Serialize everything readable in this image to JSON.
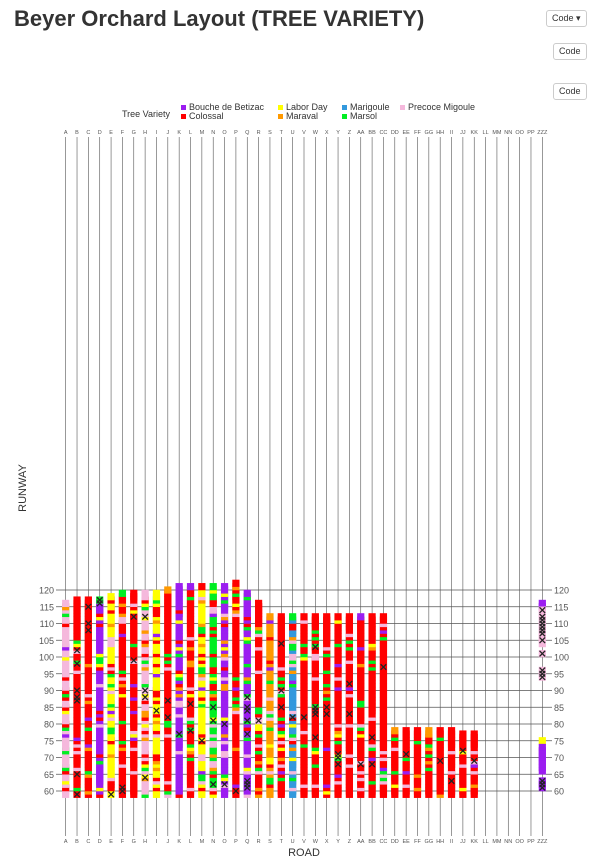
{
  "page": {
    "title": "Beyer Orchard Layout (TREE VARIETY)"
  },
  "buttons": {
    "code_dropdown": "Code ▾",
    "code_1": "Code",
    "code_2": "Code"
  },
  "chart_data": {
    "type": "heatmap",
    "title": "",
    "xlabel": "ROAD",
    "ylabel": "RUNWAY",
    "legend_title": "Tree Variety",
    "legend_position": "top",
    "grid": true,
    "x_categories": [
      "A",
      "B",
      "C",
      "D",
      "E",
      "F",
      "G",
      "H",
      "I",
      "J",
      "K",
      "L",
      "M",
      "N",
      "O",
      "P",
      "Q",
      "R",
      "S",
      "T",
      "U",
      "V",
      "W",
      "X",
      "Y",
      "Z",
      "AA",
      "BB",
      "CC",
      "DD",
      "EE",
      "FF",
      "GG",
      "HH",
      "II",
      "JJ",
      "KK",
      "LL",
      "MM",
      "NN",
      "OO",
      "PP",
      "ZZZ"
    ],
    "y_range": [
      57,
      124
    ],
    "y_ticks": [
      60,
      65,
      70,
      75,
      80,
      85,
      90,
      95,
      100,
      105,
      110,
      115,
      120
    ],
    "varieties": [
      {
        "code": "BB",
        "name": "Bouche de Betizac",
        "color": "#9b1df0"
      },
      {
        "code": "CO",
        "name": "Colossal",
        "color": "#ff0000"
      },
      {
        "code": "LD",
        "name": "Labor Day",
        "color": "#ffff00"
      },
      {
        "code": "MV",
        "name": "Maraval",
        "color": "#ff9900"
      },
      {
        "code": "MG",
        "name": "Marigoule",
        "color": "#3399dd"
      },
      {
        "code": "MS",
        "name": "Marsol",
        "color": "#00ee22"
      },
      {
        "code": "PM",
        "name": "Precoce Migoule",
        "color": "#f5b8dc"
      }
    ],
    "column_extents": [
      {
        "col": "A",
        "y": [
          59,
          116
        ]
      },
      {
        "col": "B",
        "y": [
          59,
          117
        ]
      },
      {
        "col": "C",
        "y": [
          59,
          117
        ]
      },
      {
        "col": "D",
        "y": [
          59,
          117
        ]
      },
      {
        "col": "E",
        "y": [
          59,
          118
        ]
      },
      {
        "col": "F",
        "y": [
          59,
          119
        ]
      },
      {
        "col": "G",
        "y": [
          59,
          119
        ]
      },
      {
        "col": "H",
        "y": [
          59,
          119
        ]
      },
      {
        "col": "I",
        "y": [
          59,
          119
        ]
      },
      {
        "col": "J",
        "y": [
          59,
          120
        ]
      },
      {
        "col": "K",
        "y": [
          59,
          121
        ]
      },
      {
        "col": "L",
        "y": [
          59,
          121
        ]
      },
      {
        "col": "M",
        "y": [
          59,
          121
        ]
      },
      {
        "col": "N",
        "y": [
          59,
          121
        ]
      },
      {
        "col": "O",
        "y": [
          59,
          121
        ]
      },
      {
        "col": "P",
        "y": [
          59,
          122
        ]
      },
      {
        "col": "Q",
        "y": [
          59,
          119
        ]
      },
      {
        "col": "R",
        "y": [
          59,
          116
        ]
      },
      {
        "col": "S",
        "y": [
          59,
          112
        ]
      },
      {
        "col": "T",
        "y": [
          59,
          112
        ]
      },
      {
        "col": "U",
        "y": [
          59,
          112
        ]
      },
      {
        "col": "V",
        "y": [
          59,
          112
        ]
      },
      {
        "col": "W",
        "y": [
          59,
          112
        ]
      },
      {
        "col": "X",
        "y": [
          59,
          112
        ]
      },
      {
        "col": "Y",
        "y": [
          59,
          112
        ]
      },
      {
        "col": "Z",
        "y": [
          59,
          112
        ]
      },
      {
        "col": "AA",
        "y": [
          59,
          112
        ]
      },
      {
        "col": "BB",
        "y": [
          59,
          112
        ]
      },
      {
        "col": "CC",
        "y": [
          59,
          112
        ]
      },
      {
        "col": "DD",
        "y": [
          59,
          78
        ]
      },
      {
        "col": "EE",
        "y": [
          59,
          78
        ]
      },
      {
        "col": "FF",
        "y": [
          59,
          78
        ]
      },
      {
        "col": "GG",
        "y": [
          59,
          78
        ]
      },
      {
        "col": "HH",
        "y": [
          59,
          78
        ]
      },
      {
        "col": "II",
        "y": [
          59,
          78
        ]
      },
      {
        "col": "JJ",
        "y": [
          59,
          77
        ]
      },
      {
        "col": "KK",
        "y": [
          59,
          77
        ]
      }
    ],
    "column_dominant": [
      {
        "col": "A",
        "v": "PM"
      },
      {
        "col": "B",
        "v": "CO"
      },
      {
        "col": "C",
        "v": "CO"
      },
      {
        "col": "D",
        "v": "BB"
      },
      {
        "col": "E",
        "v": "LD"
      },
      {
        "col": "F",
        "v": "CO"
      },
      {
        "col": "G",
        "v": "CO"
      },
      {
        "col": "H",
        "v": "PM"
      },
      {
        "col": "I",
        "v": "LD"
      },
      {
        "col": "J",
        "v": "CO"
      },
      {
        "col": "K",
        "v": "BB"
      },
      {
        "col": "L",
        "v": "CO"
      },
      {
        "col": "M",
        "v": "LD"
      },
      {
        "col": "N",
        "v": "MS"
      },
      {
        "col": "O",
        "v": "BB"
      },
      {
        "col": "P",
        "v": "CO"
      },
      {
        "col": "Q",
        "v": "BB"
      },
      {
        "col": "R",
        "v": "CO"
      },
      {
        "col": "S",
        "v": "MV"
      },
      {
        "col": "T",
        "v": "CO"
      },
      {
        "col": "U",
        "v": "MG"
      },
      {
        "col": "V",
        "v": "CO"
      },
      {
        "col": "W",
        "v": "CO"
      },
      {
        "col": "X",
        "v": "CO"
      },
      {
        "col": "Y",
        "v": "CO"
      },
      {
        "col": "Z",
        "v": "CO"
      },
      {
        "col": "AA",
        "v": "CO"
      },
      {
        "col": "BB",
        "v": "CO"
      },
      {
        "col": "CC",
        "v": "CO"
      },
      {
        "col": "DD",
        "v": "CO"
      },
      {
        "col": "EE",
        "v": "CO"
      },
      {
        "col": "FF",
        "v": "CO"
      },
      {
        "col": "GG",
        "v": "CO"
      },
      {
        "col": "HH",
        "v": "CO"
      },
      {
        "col": "II",
        "v": "CO"
      },
      {
        "col": "JJ",
        "v": "CO"
      },
      {
        "col": "KK",
        "v": "CO"
      }
    ],
    "zzz_column": [
      {
        "y": 116,
        "v": "BB"
      },
      {
        "y": 115,
        "v": "BB"
      },
      {
        "y": 114,
        "v": "PM"
      },
      {
        "y": 113,
        "v": "PM"
      },
      {
        "y": 112,
        "v": "PM"
      },
      {
        "y": 111,
        "v": "PM"
      },
      {
        "y": 110,
        "v": "PM"
      },
      {
        "y": 109,
        "v": "PM"
      },
      {
        "y": 108,
        "v": "PM"
      },
      {
        "y": 107,
        "v": "PM"
      },
      {
        "y": 106,
        "v": "PM"
      },
      {
        "y": 105,
        "v": "PM"
      },
      {
        "y": 104,
        "v": "PM"
      },
      {
        "y": 101,
        "v": "PM"
      },
      {
        "y": 96,
        "v": "PM"
      },
      {
        "y": 95,
        "v": "PM"
      },
      {
        "y": 94,
        "v": "PM"
      },
      {
        "y": 75,
        "v": "LD"
      },
      {
        "y": 73,
        "v": "BB"
      },
      {
        "y": 72,
        "v": "BB"
      },
      {
        "y": 71,
        "v": "BB"
      },
      {
        "y": 70,
        "v": "BB"
      },
      {
        "y": 69,
        "v": "BB"
      },
      {
        "y": 68,
        "v": "BB"
      },
      {
        "y": 67,
        "v": "BB"
      },
      {
        "y": 66,
        "v": "BB"
      },
      {
        "y": 63,
        "v": "BB"
      },
      {
        "y": 62,
        "v": "BB"
      },
      {
        "y": 61,
        "v": "BB"
      }
    ],
    "dead_trees": [
      {
        "col": "D",
        "y": 117
      },
      {
        "col": "D",
        "y": 116
      },
      {
        "col": "C",
        "y": 115
      },
      {
        "col": "G",
        "y": 112
      },
      {
        "col": "H",
        "y": 112
      },
      {
        "col": "C",
        "y": 110
      },
      {
        "col": "C",
        "y": 108
      },
      {
        "col": "B",
        "y": 102
      },
      {
        "col": "G",
        "y": 99
      },
      {
        "col": "B",
        "y": 98
      },
      {
        "col": "B",
        "y": 90
      },
      {
        "col": "B",
        "y": 88
      },
      {
        "col": "B",
        "y": 87
      },
      {
        "col": "H",
        "y": 90
      },
      {
        "col": "H",
        "y": 88
      },
      {
        "col": "J",
        "y": 87
      },
      {
        "col": "L",
        "y": 86
      },
      {
        "col": "I",
        "y": 84
      },
      {
        "col": "J",
        "y": 82
      },
      {
        "col": "N",
        "y": 85
      },
      {
        "col": "N",
        "y": 81
      },
      {
        "col": "O",
        "y": 80
      },
      {
        "col": "Q",
        "y": 88
      },
      {
        "col": "Q",
        "y": 85
      },
      {
        "col": "Q",
        "y": 84
      },
      {
        "col": "Q",
        "y": 81
      },
      {
        "col": "R",
        "y": 81
      },
      {
        "col": "T",
        "y": 85
      },
      {
        "col": "T",
        "y": 90
      },
      {
        "col": "U",
        "y": 82
      },
      {
        "col": "V",
        "y": 82
      },
      {
        "col": "W",
        "y": 85
      },
      {
        "col": "W",
        "y": 84
      },
      {
        "col": "W",
        "y": 83
      },
      {
        "col": "X",
        "y": 85
      },
      {
        "col": "X",
        "y": 83
      },
      {
        "col": "Z",
        "y": 92
      },
      {
        "col": "Z",
        "y": 83
      },
      {
        "col": "CC",
        "y": 97
      },
      {
        "col": "T",
        "y": 104
      },
      {
        "col": "W",
        "y": 103
      },
      {
        "col": "K",
        "y": 77
      },
      {
        "col": "L",
        "y": 78
      },
      {
        "col": "M",
        "y": 75
      },
      {
        "col": "Q",
        "y": 77
      },
      {
        "col": "W",
        "y": 76
      },
      {
        "col": "BB",
        "y": 76
      },
      {
        "col": "Y",
        "y": 71
      },
      {
        "col": "Y",
        "y": 70
      },
      {
        "col": "Y",
        "y": 68
      },
      {
        "col": "AA",
        "y": 68
      },
      {
        "col": "BB",
        "y": 68
      },
      {
        "col": "EE",
        "y": 71
      },
      {
        "col": "HH",
        "y": 69
      },
      {
        "col": "KK",
        "y": 69
      },
      {
        "col": "JJ",
        "y": 72
      },
      {
        "col": "B",
        "y": 65
      },
      {
        "col": "H",
        "y": 64
      },
      {
        "col": "II",
        "y": 63
      },
      {
        "col": "N",
        "y": 62
      },
      {
        "col": "O",
        "y": 62
      },
      {
        "col": "Q",
        "y": 63
      },
      {
        "col": "Q",
        "y": 62
      },
      {
        "col": "Q",
        "y": 61
      },
      {
        "col": "P",
        "y": 60
      },
      {
        "col": "F",
        "y": 61
      },
      {
        "col": "F",
        "y": 60
      },
      {
        "col": "B",
        "y": 59
      },
      {
        "col": "E",
        "y": 59
      },
      {
        "col": "ZZZ",
        "y": 114
      },
      {
        "col": "ZZZ",
        "y": 112
      },
      {
        "col": "ZZZ",
        "y": 111
      },
      {
        "col": "ZZZ",
        "y": 110
      },
      {
        "col": "ZZZ",
        "y": 109
      },
      {
        "col": "ZZZ",
        "y": 108
      },
      {
        "col": "ZZZ",
        "y": 107
      },
      {
        "col": "ZZZ",
        "y": 105
      },
      {
        "col": "ZZZ",
        "y": 101
      },
      {
        "col": "ZZZ",
        "y": 96
      },
      {
        "col": "ZZZ",
        "y": 95
      },
      {
        "col": "ZZZ",
        "y": 94
      },
      {
        "col": "ZZZ",
        "y": 63
      },
      {
        "col": "ZZZ",
        "y": 62
      },
      {
        "col": "ZZZ",
        "y": 61
      }
    ]
  }
}
